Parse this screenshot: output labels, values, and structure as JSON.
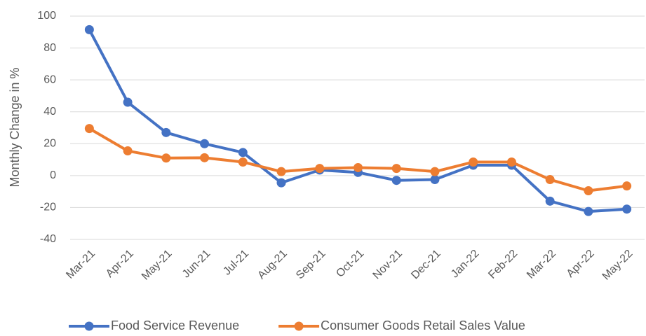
{
  "chart_data": {
    "type": "line",
    "y_label": "Monthly Change in %",
    "categories": [
      "Mar-21",
      "Apr-21",
      "May-21",
      "Jun-21",
      "Jul-21",
      "Aug-21",
      "Sep-21",
      "Oct-21",
      "Nov-21",
      "Dec-21",
      "Jan-22",
      "Feb-22",
      "Mar-22",
      "Apr-22",
      "May-22"
    ],
    "series": [
      {
        "name": "Food Service Revenue",
        "color": "#4472c4",
        "values": [
          91.5,
          46,
          27,
          20,
          14.5,
          -4.5,
          3.5,
          2,
          -3,
          -2.5,
          6.5,
          6.5,
          -16,
          -22.5,
          -21
        ]
      },
      {
        "name": "Consumer Goods Retail Sales Value",
        "color": "#ed7d31",
        "values": [
          29.5,
          15.5,
          11,
          11.2,
          8.5,
          2.5,
          4.5,
          5,
          4.5,
          2.5,
          8.5,
          8.5,
          -2.5,
          -9.5,
          -6.5
        ]
      }
    ],
    "ylim": [
      -40,
      100
    ],
    "yticks": [
      -40,
      -20,
      0,
      20,
      40,
      60,
      80,
      100
    ],
    "grid": true,
    "legend": "bottom"
  }
}
